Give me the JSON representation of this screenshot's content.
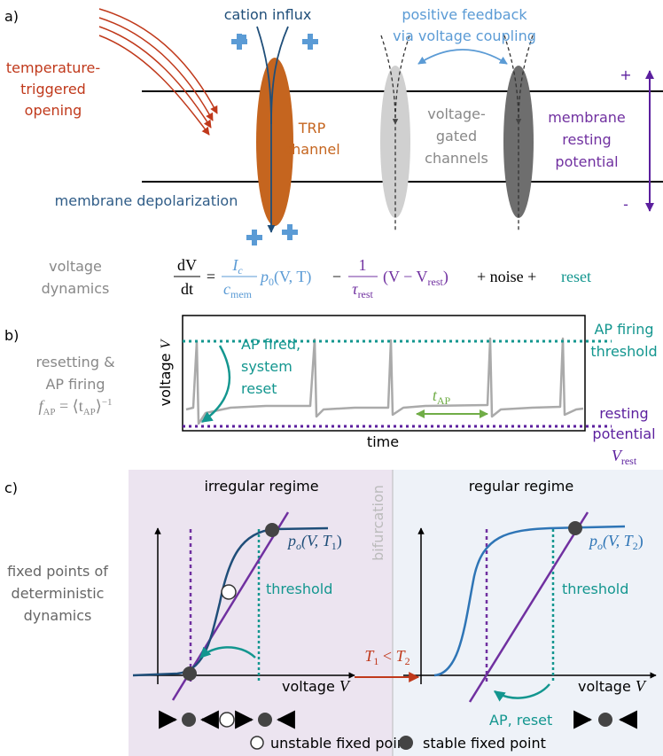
{
  "panel_a": {
    "label": "a)",
    "temperature": [
      "temperature-",
      "triggered",
      "opening"
    ],
    "cation_influx": "cation influx",
    "feedback": [
      "positive feedback",
      "via voltage coupling"
    ],
    "trp": [
      "TRP",
      "channel"
    ],
    "voltage_gated": [
      "voltage-",
      "gated",
      "channels"
    ],
    "membrane_potential": [
      "membrane",
      "resting",
      "potential"
    ],
    "plus": "+",
    "minus": "-",
    "depolarization": "membrane depolarization"
  },
  "equation": {
    "label": [
      "voltage",
      "dynamics"
    ],
    "lhs_num": "dV",
    "lhs_den": "dt",
    "equals": "=",
    "frac1_num": "I",
    "frac1_num_sub": "c",
    "frac1_den": "c",
    "frac1_den_sub": "mem",
    "p": "p",
    "p_sub": "0",
    "p_args": "(V, T)",
    "minus": "−",
    "frac2_num": "1",
    "frac2_den": "τ",
    "frac2_den_sub": "rest",
    "paren": "(V − V",
    "paren_sub": "rest",
    "paren_close": ")",
    "noise": "+ noise +",
    "reset": "reset"
  },
  "panel_b": {
    "label": "b)",
    "description": [
      "resetting &",
      "AP firing"
    ],
    "formula": {
      "f": "f",
      "f_sub": "AP",
      "eq": " = ⟨t",
      "t_sub": "AP",
      "close": "⟩",
      "sup": "−1"
    },
    "y_axis": {
      "text": "voltage ",
      "var": "V"
    },
    "x_axis": "time",
    "ap_fired": [
      "AP fired,",
      "system",
      "reset"
    ],
    "interval": {
      "t": "t",
      "sub": "AP"
    },
    "threshold": [
      "AP firing",
      "threshold"
    ],
    "resting": [
      "resting",
      "potential"
    ],
    "v_rest": {
      "v": "V",
      "sub": "rest"
    }
  },
  "panel_c": {
    "label": "c)",
    "description": [
      "fixed points of",
      "deterministic",
      "dynamics"
    ],
    "irregular": "irregular regime",
    "regular": "regular regime",
    "bifurcation": "bifurcation",
    "p1": {
      "p": "p",
      "sub": "o",
      "args": "(V, T",
      "t_sub": "1",
      "close": ")"
    },
    "p2": {
      "p": "p",
      "sub": "o",
      "args": "(V, T",
      "t_sub": "2",
      "close": ")"
    },
    "threshold_left": "threshold",
    "threshold_right": "threshold",
    "x_axis_left": {
      "text": "voltage ",
      "var": "V"
    },
    "x_axis_right": {
      "text": "voltage ",
      "var": "V"
    },
    "comparison": {
      "t1": "T",
      "s1": "1",
      "lt": " < ",
      "t2": "T",
      "s2": "2"
    },
    "ap_reset": "AP, reset",
    "legend": {
      "unstable": "unstable fixed point",
      "stable": "stable fixed point"
    }
  }
}
